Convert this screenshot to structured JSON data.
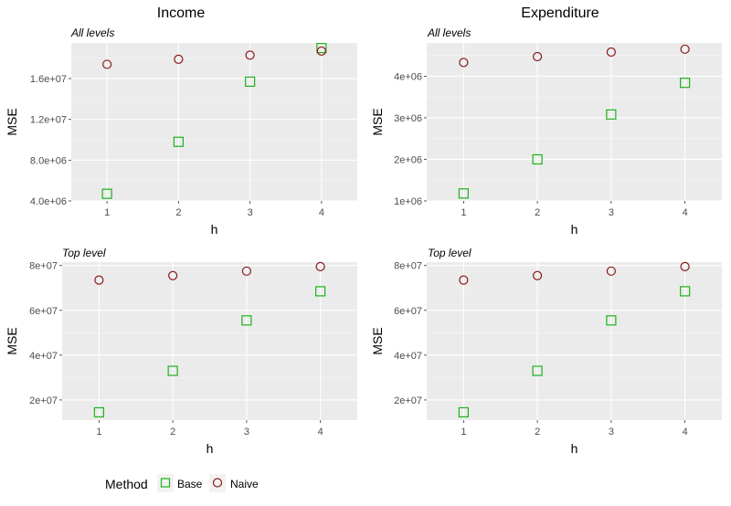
{
  "colors": {
    "panel_bg": "#ebebeb",
    "grid_major": "#ffffff",
    "base": "#1db31d",
    "naive": "#8b1a1a",
    "tick": "#4d4d4d"
  },
  "column_titles": [
    "Income",
    "Expenditure"
  ],
  "legend": {
    "title": "Method",
    "items": [
      {
        "label": "Base",
        "shape": "square-icon",
        "color": "#1db31d"
      },
      {
        "label": "Naive",
        "shape": "circle-icon",
        "color": "#8b1a1a"
      }
    ]
  },
  "chart_data": [
    {
      "type": "scatter",
      "column": "Income",
      "subtitle": "All levels",
      "xlabel": "h",
      "ylabel": "MSE",
      "x": [
        1,
        2,
        3,
        4
      ],
      "x_ticks": [
        "1",
        "2",
        "3",
        "4"
      ],
      "xlim": [
        0.5,
        4.5
      ],
      "ylim": [
        4000000,
        19500000
      ],
      "y_ticks": [
        4000000,
        8000000,
        12000000,
        16000000
      ],
      "y_tick_labels": [
        "4.0e+06",
        "8.0e+06",
        "1.2e+07",
        "1.6e+07"
      ],
      "series": [
        {
          "name": "Base",
          "values": [
            4700000,
            9800000,
            15700000,
            19000000
          ]
        },
        {
          "name": "Naive",
          "values": [
            17400000,
            17900000,
            18300000,
            18700000
          ]
        }
      ],
      "grid": true
    },
    {
      "type": "scatter",
      "column": "Expenditure",
      "subtitle": "All levels",
      "xlabel": "h",
      "ylabel": "MSE",
      "x": [
        1,
        2,
        3,
        4
      ],
      "x_ticks": [
        "1",
        "2",
        "3",
        "4"
      ],
      "xlim": [
        0.5,
        4.5
      ],
      "ylim": [
        1000000,
        4800000
      ],
      "y_ticks": [
        1000000,
        2000000,
        3000000,
        4000000
      ],
      "y_tick_labels": [
        "1e+06",
        "2e+06",
        "3e+06",
        "4e+06"
      ],
      "series": [
        {
          "name": "Base",
          "values": [
            1180000,
            2000000,
            3080000,
            3840000
          ]
        },
        {
          "name": "Naive",
          "values": [
            4330000,
            4470000,
            4580000,
            4650000
          ]
        }
      ],
      "grid": true
    },
    {
      "type": "scatter",
      "column": "Income",
      "subtitle": "Top level",
      "xlabel": "h",
      "ylabel": "MSE",
      "x": [
        1,
        2,
        3,
        4
      ],
      "x_ticks": [
        "1",
        "2",
        "3",
        "4"
      ],
      "xlim": [
        0.5,
        4.5
      ],
      "ylim": [
        11000000,
        81500000
      ],
      "y_ticks": [
        20000000,
        40000000,
        60000000,
        80000000
      ],
      "y_tick_labels": [
        "2e+07",
        "4e+07",
        "6e+07",
        "8e+07"
      ],
      "series": [
        {
          "name": "Base",
          "values": [
            14500000,
            33000000,
            55500000,
            68500000
          ]
        },
        {
          "name": "Naive",
          "values": [
            73500000,
            75500000,
            77500000,
            79500000
          ]
        }
      ],
      "grid": true
    },
    {
      "type": "scatter",
      "column": "Expenditure",
      "subtitle": "Top level",
      "xlabel": "h",
      "ylabel": "MSE",
      "x": [
        1,
        2,
        3,
        4
      ],
      "x_ticks": [
        "1",
        "2",
        "3",
        "4"
      ],
      "xlim": [
        0.5,
        4.5
      ],
      "ylim": [
        11000000,
        81500000
      ],
      "y_ticks": [
        20000000,
        40000000,
        60000000,
        80000000
      ],
      "y_tick_labels": [
        "2e+07",
        "4e+07",
        "6e+07",
        "8e+07"
      ],
      "series": [
        {
          "name": "Base",
          "values": [
            14500000,
            33000000,
            55500000,
            68500000
          ]
        },
        {
          "name": "Naive",
          "values": [
            73500000,
            75500000,
            77500000,
            79500000
          ]
        }
      ],
      "grid": true
    }
  ]
}
